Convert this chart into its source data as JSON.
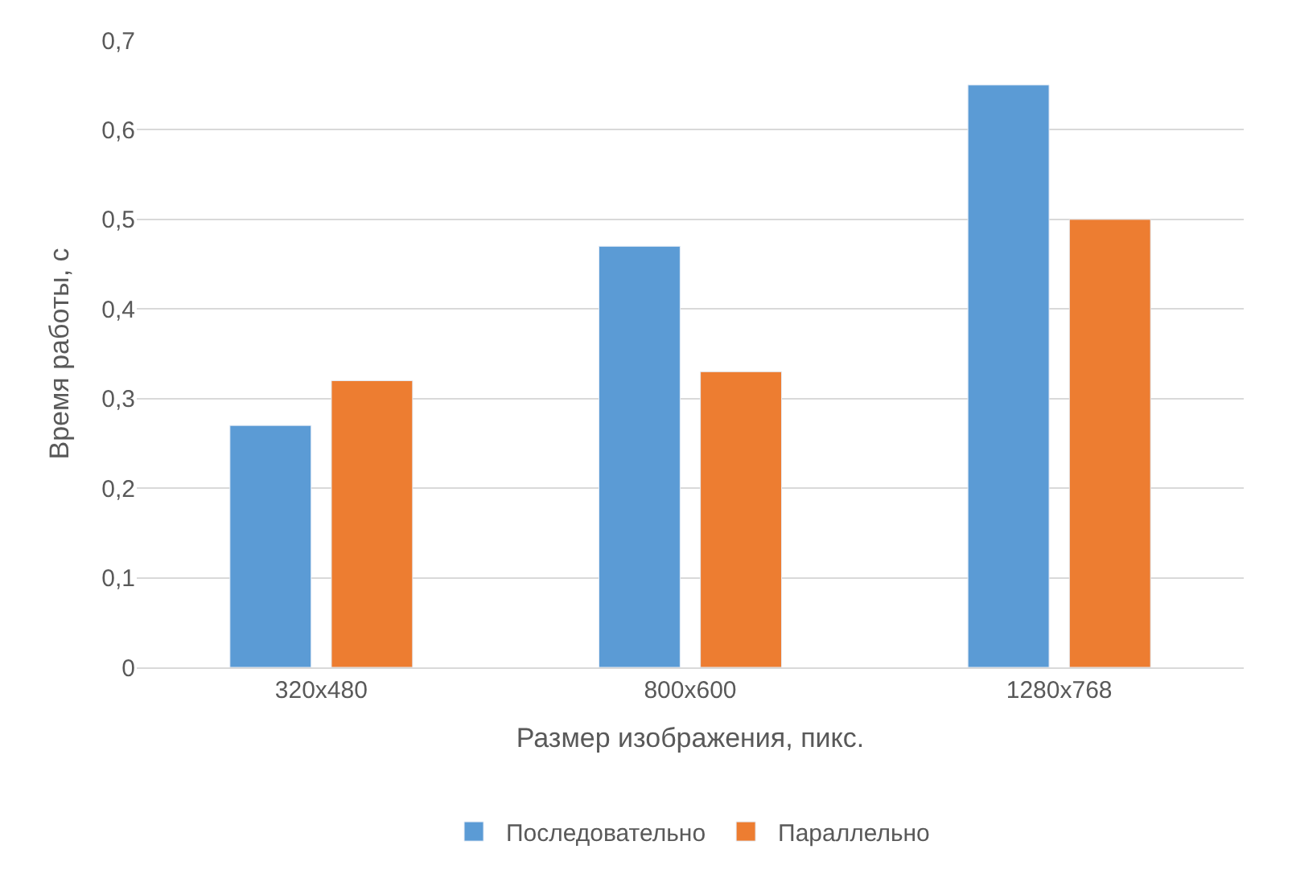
{
  "chart_data": {
    "type": "bar",
    "xlabel": "Размер изображения, пикс.",
    "ylabel": "Время работы, с",
    "categories": [
      "320x480",
      "800x600",
      "1280x768"
    ],
    "series": [
      {
        "name": "Последовательно",
        "color": "#5b9bd5",
        "values": [
          0.27,
          0.47,
          0.65
        ]
      },
      {
        "name": "Параллельно",
        "color": "#ed7d31",
        "values": [
          0.32,
          0.33,
          0.5
        ]
      }
    ],
    "ylim": [
      0,
      0.7
    ],
    "yticks": [
      0,
      {
        "value": 0.1,
        "label": "0,1"
      },
      {
        "value": 0.2,
        "label": "0,2"
      },
      {
        "value": 0.3,
        "label": "0,3"
      },
      {
        "value": 0.4,
        "label": "0,4"
      },
      {
        "value": 0.5,
        "label": "0,5"
      },
      {
        "value": 0.6,
        "label": "0,6"
      },
      {
        "value": 0.7,
        "label": "0,7"
      }
    ],
    "grid": "y",
    "legend": "bottom"
  }
}
